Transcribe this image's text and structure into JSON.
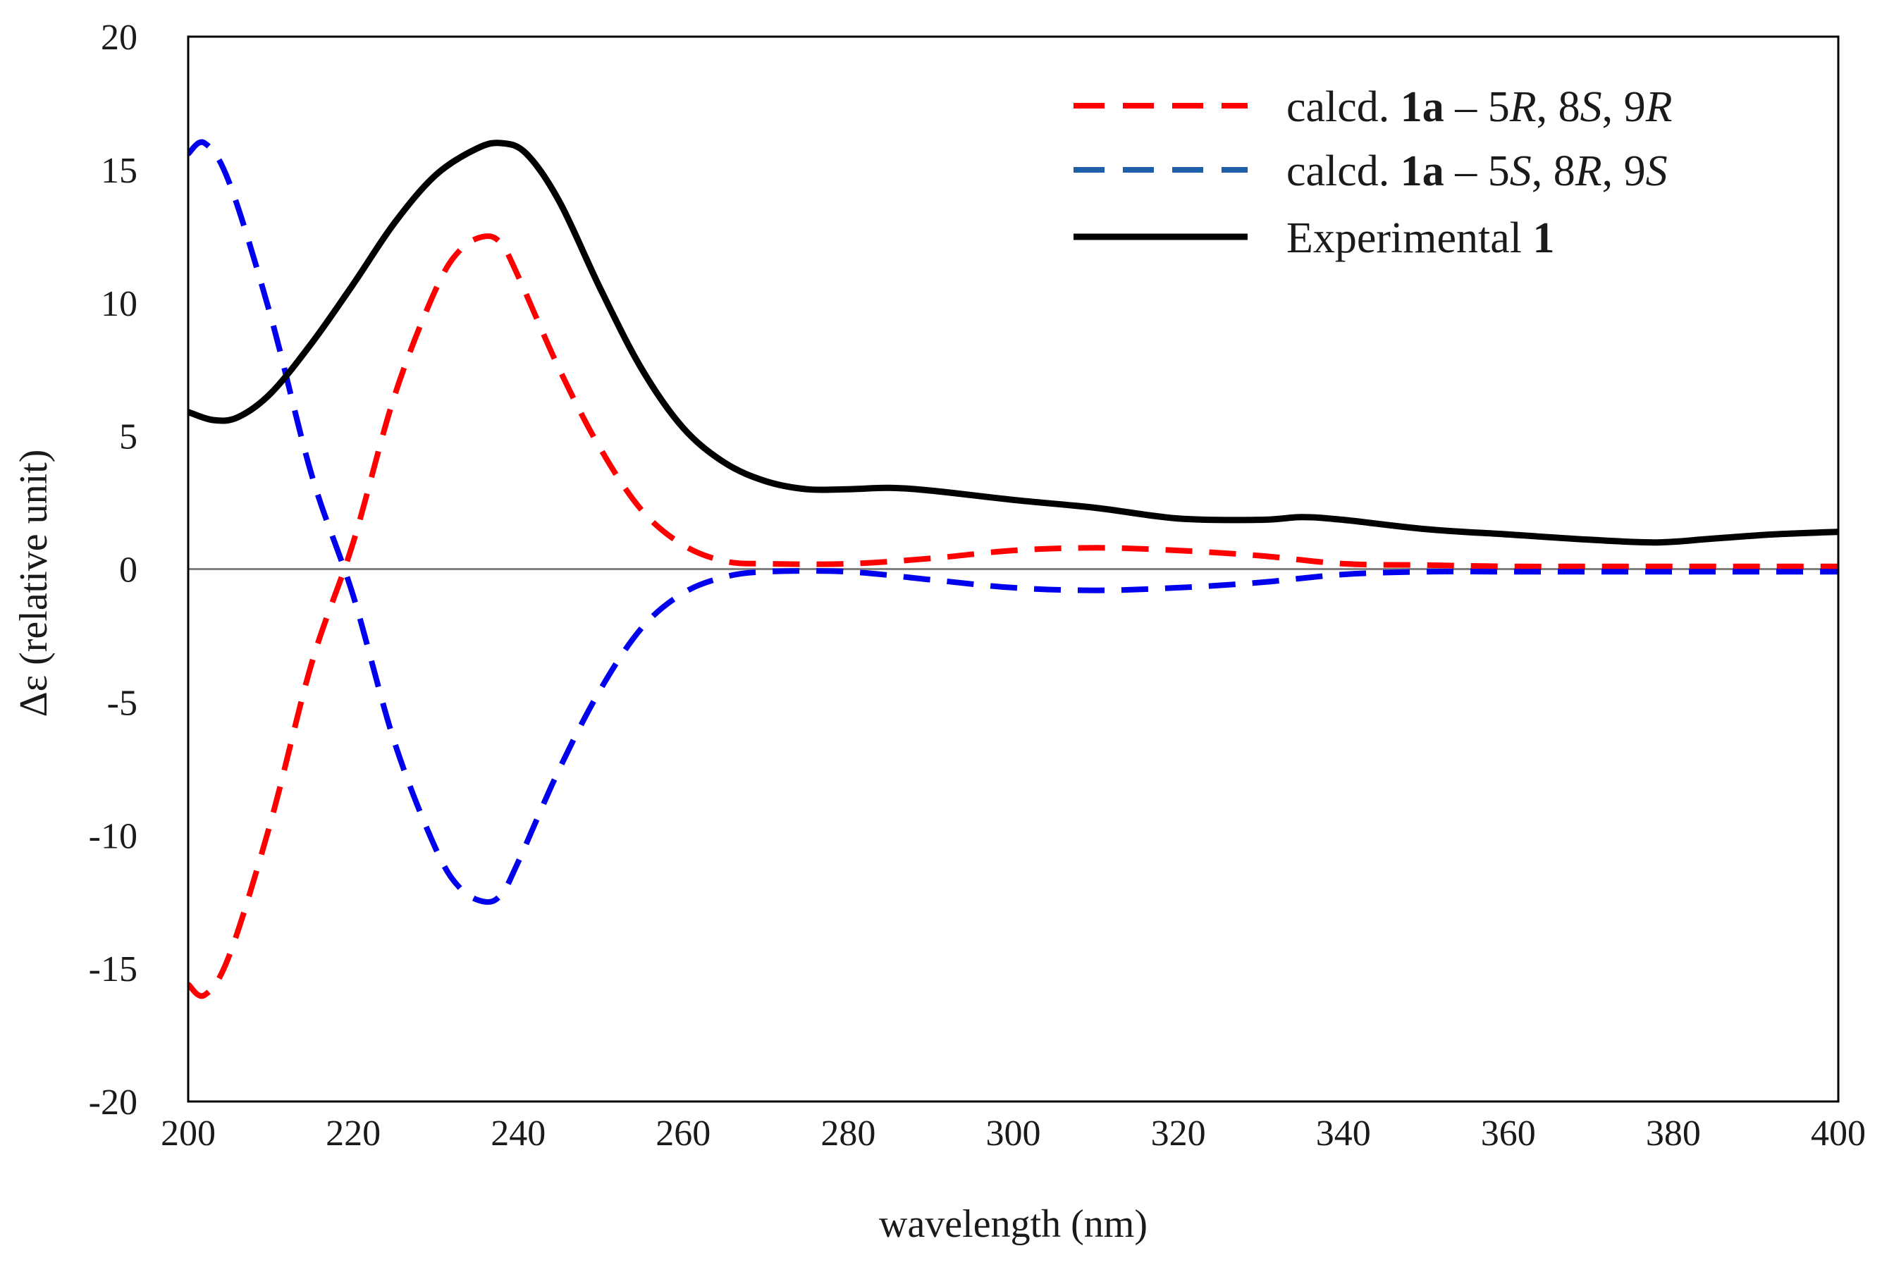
{
  "chart_data": {
    "type": "line",
    "xlabel": "wavelength (nm)",
    "ylabel": "Δε (relative unit)",
    "xlim": [
      200,
      400
    ],
    "ylim": [
      -20,
      20
    ],
    "xticks": [
      "200",
      "220",
      "240",
      "260",
      "280",
      "300",
      "320",
      "340",
      "360",
      "380",
      "400"
    ],
    "yticks": [
      "20",
      "15",
      "10",
      "5",
      "0",
      "-5",
      "-10",
      "-15",
      "-20"
    ],
    "grid": false,
    "zero_line": true,
    "legend_position": "top-right",
    "series": [
      {
        "name": "calcd. 1a – 5R, 8S, 9R",
        "name_parts": [
          {
            "t": "calcd. ",
            "s": ""
          },
          {
            "t": "1a",
            "s": "b"
          },
          {
            "t": " – 5",
            "s": ""
          },
          {
            "t": "R",
            "s": "i"
          },
          {
            "t": ", 8",
            "s": ""
          },
          {
            "t": "S",
            "s": "i"
          },
          {
            "t": ", 9",
            "s": ""
          },
          {
            "t": "R",
            "s": "i"
          }
        ],
        "legend_color": "#ff0000",
        "color": "#ff0000",
        "style": "dashed",
        "x": [
          200,
          202,
          205,
          210,
          215,
          220,
          225,
          230,
          233,
          236,
          238,
          240,
          245,
          250,
          255,
          260,
          265,
          270,
          280,
          290,
          300,
          310,
          320,
          330,
          340,
          350,
          360,
          370,
          380,
          390,
          400
        ],
        "y": [
          -15.6,
          -16.0,
          -14.5,
          -9.5,
          -3.5,
          1.0,
          6.5,
          10.5,
          12.0,
          12.5,
          12.2,
          11.0,
          7.5,
          4.5,
          2.2,
          0.9,
          0.3,
          0.2,
          0.2,
          0.4,
          0.7,
          0.8,
          0.7,
          0.5,
          0.2,
          0.15,
          0.1,
          0.1,
          0.1,
          0.1,
          0.1
        ]
      },
      {
        "name": "calcd. 1a – 5S, 8R, 9S",
        "name_parts": [
          {
            "t": "calcd. ",
            "s": ""
          },
          {
            "t": "1a",
            "s": "b"
          },
          {
            "t": " – 5",
            "s": ""
          },
          {
            "t": "S",
            "s": "i"
          },
          {
            "t": ", 8",
            "s": ""
          },
          {
            "t": "R",
            "s": "i"
          },
          {
            "t": ", 9",
            "s": ""
          },
          {
            "t": "S",
            "s": "i"
          }
        ],
        "legend_color": "#1f5faa",
        "color": "#0000ee",
        "style": "dashed",
        "x": [
          200,
          202,
          205,
          210,
          215,
          220,
          225,
          230,
          233,
          236,
          238,
          240,
          245,
          250,
          255,
          260,
          265,
          270,
          280,
          290,
          300,
          310,
          320,
          330,
          340,
          350,
          360,
          370,
          380,
          390,
          400
        ],
        "y": [
          15.6,
          16.0,
          14.5,
          9.5,
          3.5,
          -1.0,
          -6.5,
          -10.5,
          -12.0,
          -12.5,
          -12.2,
          -11.0,
          -7.5,
          -4.5,
          -2.2,
          -0.9,
          -0.3,
          -0.1,
          -0.1,
          -0.4,
          -0.7,
          -0.8,
          -0.7,
          -0.5,
          -0.2,
          -0.1,
          -0.1,
          -0.1,
          -0.1,
          -0.1,
          -0.1
        ]
      },
      {
        "name": "Experimental 1",
        "name_parts": [
          {
            "t": "Experimental ",
            "s": ""
          },
          {
            "t": "1",
            "s": "b"
          }
        ],
        "legend_color": "#000000",
        "color": "#000000",
        "style": "solid",
        "x": [
          200,
          203,
          206,
          210,
          215,
          220,
          225,
          230,
          235,
          238,
          241,
          245,
          250,
          255,
          260,
          265,
          270,
          275,
          280,
          285,
          290,
          300,
          310,
          320,
          330,
          335,
          340,
          350,
          360,
          370,
          378,
          385,
          392,
          400
        ],
        "y": [
          5.9,
          5.6,
          5.7,
          6.6,
          8.5,
          10.7,
          13.0,
          14.8,
          15.8,
          16.0,
          15.6,
          13.8,
          10.5,
          7.5,
          5.3,
          4.0,
          3.3,
          3.0,
          3.0,
          3.05,
          2.95,
          2.6,
          2.3,
          1.9,
          1.85,
          1.95,
          1.85,
          1.5,
          1.3,
          1.1,
          1.0,
          1.15,
          1.3,
          1.4
        ]
      }
    ]
  }
}
